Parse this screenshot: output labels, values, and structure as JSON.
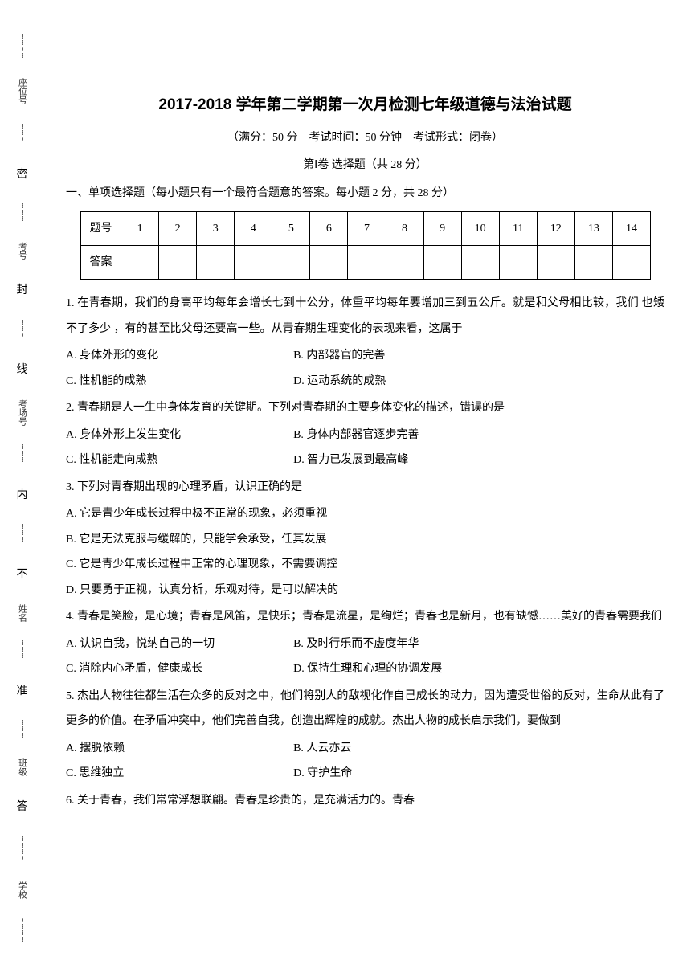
{
  "binding": {
    "chars": [
      "密",
      "封",
      "线",
      "内",
      "不",
      "准",
      "答"
    ],
    "side_labels": [
      "座位号",
      "考号",
      "考场号",
      "姓名",
      "班级",
      "学校"
    ]
  },
  "header": {
    "title": "2017-2018 学年第二学期第一次月检测七年级道德与法治试题",
    "subtitle": "（满分：50 分　考试时间：50 分钟　考试形式：闭卷）",
    "section_label": "第Ⅰ卷 选择题（共 28 分）",
    "instruction": "一、单项选择题（每小题只有一个最符合题意的答案。每小题 2 分，共 28 分）"
  },
  "answer_table": {
    "row1_label": "题号",
    "row2_label": "答案",
    "numbers": [
      "1",
      "2",
      "3",
      "4",
      "5",
      "6",
      "7",
      "8",
      "9",
      "10",
      "11",
      "12",
      "13",
      "14"
    ]
  },
  "questions": [
    {
      "stem": "1. 在青春期，我们的身高平均每年会增长七到十公分，体重平均每年要增加三到五公斤。就是和父母相比较，我们  也矮不了多少 ，有的甚至比父母还要高一些。从青春期生理变化的表现来看，这属于",
      "options_layout": "2col",
      "options": [
        "A. 身体外形的变化",
        "B. 内部器官的完善",
        "C. 性机能的成熟",
        "D. 运动系统的成熟"
      ]
    },
    {
      "stem": "2. 青春期是人一生中身体发育的关键期。下列对青春期的主要身体变化的描述，错误的是",
      "options_layout": "2col",
      "options": [
        "A. 身体外形上发生变化",
        "B. 身体内部器官逐步完善",
        "C. 性机能走向成熟",
        "D. 智力已发展到最高峰"
      ]
    },
    {
      "stem": "3. 下列对青春期出现的心理矛盾，认识正确的是",
      "options_layout": "1col",
      "options": [
        "A. 它是青少年成长过程中极不正常的现象，必须重视",
        "B. 它是无法克服与缓解的，只能学会承受，任其发展",
        "C. 它是青少年成长过程中正常的心理现象，不需要调控",
        "D. 只要勇于正视，认真分析，乐观对待，是可以解决的"
      ]
    },
    {
      "stem": "4. 青春是笑脸，是心境；青春是风笛，是快乐；青春是流星，是绚烂；青春也是新月，也有缺憾……美好的青春需要我们",
      "options_layout": "2col",
      "options": [
        "A. 认识自我，悦纳自己的一切",
        "B. 及时行乐而不虚度年华",
        "C. 消除内心矛盾，健康成长",
        "D. 保持生理和心理的协调发展"
      ]
    },
    {
      "stem": "5. 杰出人物往往都生活在众多的反对之中，他们将别人的敌视化作自己成长的动力，因为遭受世俗的反对，生命从此有了更多的价值。在矛盾冲突中，他们完善自我，创造出辉煌的成就。杰出人物的成长启示我们，要做到",
      "options_layout": "2col",
      "options": [
        "A. 摆脱依赖",
        "B. 人云亦云",
        "C. 思维独立",
        "D. 守护生命"
      ]
    },
    {
      "stem": "6. 关于青春，我们常常浮想联翩。青春是珍贵的，是充满活力的。青春",
      "options_layout": "none",
      "options": []
    }
  ]
}
